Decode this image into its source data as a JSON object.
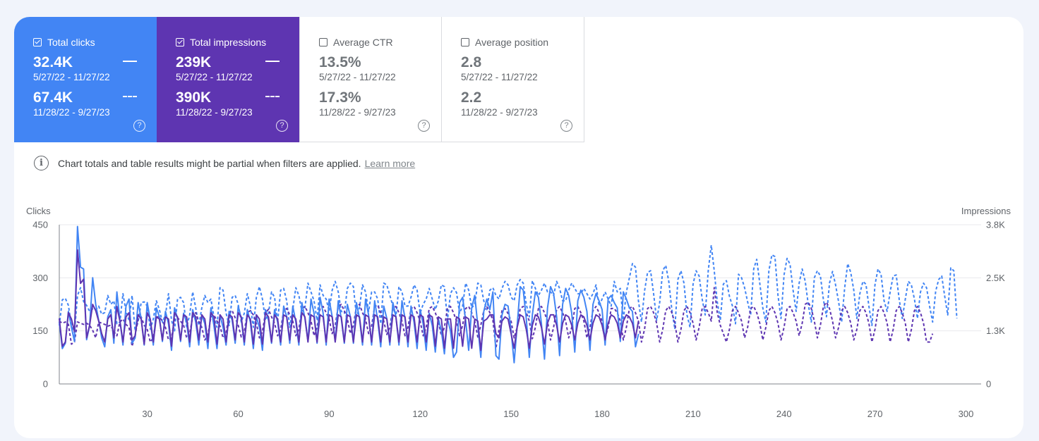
{
  "metrics": [
    {
      "label": "Total clicks",
      "checked": true,
      "value1": "32.4K",
      "range1": "5/27/22 - 11/27/22",
      "value2": "67.4K",
      "range2": "11/28/22 - 9/27/23",
      "color": "#4285f4"
    },
    {
      "label": "Total impressions",
      "checked": true,
      "value1": "239K",
      "range1": "5/27/22 - 11/27/22",
      "value2": "390K",
      "range2": "11/28/22 - 9/27/23",
      "color": "#5e35b1"
    },
    {
      "label": "Average CTR",
      "checked": false,
      "value1": "13.5%",
      "range1": "5/27/22 - 11/27/22",
      "value2": "17.3%",
      "range2": "11/28/22 - 9/27/23"
    },
    {
      "label": "Average position",
      "checked": false,
      "value1": "2.8",
      "range1": "5/27/22 - 11/27/22",
      "value2": "2.2",
      "range2": "11/28/22 - 9/27/23"
    }
  ],
  "help_icon": "?",
  "notice": {
    "text": "Chart totals and table results might be partial when filters are applied.",
    "link": "Learn more"
  },
  "chart_data": {
    "type": "line",
    "ylabel_left": "Clicks",
    "ylabel_right": "Impressions",
    "y_left_ticks": [
      "0",
      "150",
      "300",
      "450"
    ],
    "y_right_ticks": [
      "0",
      "1.3K",
      "2.5K",
      "3.8K"
    ],
    "ylim_left": [
      0,
      450
    ],
    "ylim_right": [
      0,
      3800
    ],
    "x_ticks": [
      "30",
      "60",
      "90",
      "120",
      "150",
      "180",
      "210",
      "240",
      "270",
      "300"
    ],
    "xlim": [
      1,
      305
    ],
    "grid": true,
    "series": [
      {
        "key": "clicks_current",
        "metric": "Total clicks",
        "period": "11/28/22 - 9/27/23",
        "axis": "left",
        "style": "dashed",
        "color": "#4285f4",
        "values": [
          165,
          238,
          242,
          222,
          165,
          145,
          250,
          272,
          233,
          222,
          205,
          212,
          210,
          220,
          197,
          202,
          250,
          225,
          235,
          170,
          175,
          255,
          205,
          180,
          250,
          150,
          175,
          230,
          232,
          220,
          155,
          183,
          235,
          210,
          175,
          195,
          255,
          180,
          150,
          240,
          245,
          230,
          160,
          195,
          260,
          215,
          165,
          215,
          250,
          230,
          240,
          190,
          160,
          272,
          265,
          200,
          165,
          245,
          250,
          225,
          175,
          200,
          255,
          220,
          160,
          245,
          275,
          240,
          180,
          200,
          260,
          245,
          175,
          265,
          270,
          235,
          160,
          210,
          272,
          250,
          205,
          215,
          285,
          260,
          235,
          180,
          280,
          250,
          240,
          205,
          265,
          290,
          260,
          205,
          200,
          270,
          285,
          275,
          190,
          215,
          280,
          260,
          205,
          260,
          260,
          240,
          170,
          285,
          280,
          250,
          220,
          190,
          275,
          260,
          220,
          220,
          245,
          280,
          265,
          200,
          225,
          240,
          270,
          240,
          210,
          235,
          280,
          275,
          180,
          255,
          272,
          258,
          200,
          220,
          285,
          265,
          215,
          225,
          285,
          280,
          235,
          210,
          265,
          272,
          250,
          240,
          270,
          290,
          280,
          245,
          235,
          280,
          295,
          285,
          225,
          190,
          292,
          270,
          250,
          265,
          285,
          260,
          260,
          250,
          290,
          270,
          235,
          235,
          265,
          285,
          270,
          255,
          255,
          270,
          255,
          240,
          255,
          280,
          220,
          240,
          260,
          240,
          220,
          290,
          260,
          270,
          180,
          260,
          300,
          340,
          330,
          235,
          175,
          262,
          315,
          320,
          255,
          180,
          230,
          320,
          335,
          290,
          210,
          155,
          295,
          320,
          285,
          195,
          160,
          282,
          320,
          305,
          240,
          195,
          320,
          392,
          320,
          232,
          180,
          282,
          292,
          248,
          220,
          170,
          310,
          300,
          272,
          232,
          195,
          325,
          352,
          285,
          215,
          175,
          320,
          365,
          360,
          250,
          185,
          308,
          355,
          338,
          265,
          205,
          285,
          325,
          290,
          225,
          175,
          300,
          320,
          305,
          238,
          190,
          285,
          318,
          280,
          232,
          175,
          272,
          340,
          315,
          265,
          185,
          255,
          290,
          282,
          220,
          165,
          280,
          325,
          310,
          235,
          205,
          260,
          305,
          308,
          238,
          185,
          240,
          290,
          280,
          240,
          185,
          260,
          285,
          272,
          220,
          175,
          262,
          295,
          305,
          248,
          195,
          328,
          320,
          185
        ]
      },
      {
        "key": "impressions_current",
        "metric": "Total impressions",
        "period": "11/28/22 - 9/27/23",
        "axis": "right",
        "style": "dashed",
        "color": "#5e35b1",
        "values": [
          1500,
          1450,
          1480,
          1420,
          950,
          1000,
          1480,
          1450,
          1420,
          1450,
          1400,
          1280,
          1100,
          1480,
          1450,
          1420,
          1380,
          1400,
          1250,
          1150,
          1480,
          1550,
          1420,
          1350,
          900,
          1150,
          1550,
          1600,
          1400,
          1300,
          1000,
          1100,
          1600,
          1600,
          1500,
          1350,
          1050,
          1100,
          1550,
          1580,
          1500,
          1400,
          1100,
          1200,
          1600,
          1700,
          1500,
          1350,
          1050,
          1150,
          1600,
          1650,
          1500,
          1380,
          1100,
          1200,
          1700,
          1750,
          1580,
          1400,
          1120,
          1250,
          1700,
          1750,
          1650,
          1450,
          1100,
          1250,
          1700,
          1780,
          1600,
          1450,
          1150,
          1300,
          1750,
          1800,
          1650,
          1500,
          1150,
          1300,
          1800,
          1850,
          1700,
          1500,
          1150,
          1350,
          1800,
          1850,
          1700,
          1550,
          1200,
          1400,
          1850,
          1900,
          1750,
          1550,
          1200,
          1400,
          1850,
          1900,
          1700,
          1550,
          1200,
          1380,
          1850,
          1880,
          1700,
          1500,
          1180,
          1350,
          1800,
          1850,
          1700,
          1500,
          1150,
          1350,
          1800,
          1850,
          1700,
          1500,
          1150,
          1350,
          1800,
          1850,
          1700,
          1500,
          1150,
          1350,
          1800,
          1850,
          1700,
          1500,
          1150,
          1400,
          1800,
          1850,
          1700,
          1500,
          1120,
          1400,
          1750,
          1850,
          1700,
          1520,
          850,
          1300,
          1750,
          1800,
          1680,
          1500,
          1100,
          1350,
          1800,
          1850,
          1700,
          1500,
          1080,
          1350,
          1800,
          1850,
          1700,
          1500,
          1050,
          1350,
          1780,
          1850,
          1700,
          1500,
          1100,
          1350,
          1800,
          1850,
          1700,
          1500,
          1100,
          1350,
          1750,
          1850,
          1700,
          1500,
          1100,
          1350,
          1800,
          1800,
          1700,
          1500,
          1050,
          1350,
          1800,
          1850,
          1700,
          1500,
          1000,
          1300,
          1800,
          1850,
          1700,
          1450,
          1000,
          1300,
          1750,
          1850,
          1700,
          1450,
          1000,
          1300,
          1750,
          1850,
          1700,
          1450,
          1050,
          1350,
          1800,
          1850,
          1700,
          1500,
          2300,
          1700,
          1400,
          1200,
          1000,
          1300,
          1750,
          1850,
          1700,
          1500,
          1100,
          1350,
          1800,
          1850,
          1700,
          1450,
          1050,
          1350,
          1750,
          1850,
          1700,
          1450,
          1050,
          1350,
          1800,
          1850,
          1700,
          1500,
          1150,
          1450,
          1900,
          1950,
          1800,
          1500,
          1100,
          1400,
          1850,
          1950,
          1800,
          1500,
          1100,
          1350,
          1750,
          1850,
          1700,
          1450,
          1050,
          1300,
          1750,
          1850,
          1700,
          1450,
          1000,
          1300,
          1750,
          1850,
          1700,
          1450,
          1000,
          1300,
          1750,
          1850,
          1700,
          1450,
          1000,
          1300,
          1750,
          1850,
          1700,
          1450,
          1000,
          1000,
          1200
        ]
      },
      {
        "key": "clicks_previous",
        "metric": "Total clicks",
        "period": "5/27/22 - 11/27/22",
        "axis": "left",
        "style": "solid",
        "color": "#4285f4",
        "values": [
          175,
          100,
          115,
          205,
          160,
          120,
          445,
          330,
          325,
          125,
          165,
          300,
          225,
          180,
          130,
          105,
          190,
          210,
          115,
          260,
          180,
          110,
          220,
          240,
          115,
          130,
          230,
          185,
          110,
          230,
          180,
          110,
          215,
          190,
          120,
          205,
          170,
          95,
          215,
          185,
          120,
          200,
          175,
          105,
          210,
          175,
          110,
          195,
          170,
          100,
          215,
          165,
          100,
          195,
          160,
          110,
          205,
          180,
          115,
          220,
          185,
          110,
          210,
          175,
          100,
          190,
          160,
          95,
          210,
          180,
          115,
          210,
          175,
          110,
          220,
          190,
          115,
          220,
          175,
          110,
          230,
          185,
          120,
          240,
          200,
          115,
          245,
          200,
          110,
          240,
          190,
          120,
          235,
          185,
          115,
          225,
          190,
          115,
          230,
          185,
          110,
          240,
          195,
          110,
          235,
          180,
          105,
          220,
          185,
          110,
          230,
          190,
          110,
          235,
          185,
          105,
          220,
          175,
          100,
          210,
          170,
          95,
          200,
          165,
          90,
          185,
          150,
          85,
          185,
          150,
          75,
          90,
          230,
          245,
          180,
          95,
          215,
          250,
          165,
          75,
          205,
          240,
          210,
          260,
          80,
          70,
          195,
          225,
          220,
          150,
          60,
          165,
          275,
          265,
          185,
          75,
          195,
          260,
          245,
          170,
          70,
          215,
          275,
          255,
          190,
          80,
          225,
          270,
          250,
          200,
          90,
          235,
          265,
          245,
          205,
          95,
          225,
          255,
          235,
          210,
          110,
          240,
          250,
          230,
          215,
          120,
          260,
          240,
          215,
          205,
          105,
          140
        ]
      },
      {
        "key": "impressions_previous",
        "metric": "Total impressions",
        "period": "5/27/22 - 11/27/22",
        "axis": "right",
        "style": "solid",
        "color": "#5e35b1",
        "values": [
          1550,
          900,
          1000,
          1700,
          1550,
          1250,
          3200,
          2400,
          2500,
          1100,
          1400,
          1900,
          1750,
          1500,
          1200,
          1000,
          1550,
          1650,
          1100,
          1850,
          1500,
          1000,
          1600,
          1700,
          1050,
          1150,
          1650,
          1550,
          950,
          1700,
          1550,
          1000,
          1600,
          1550,
          1050,
          1600,
          1550,
          900,
          1700,
          1600,
          1050,
          1650,
          1600,
          1000,
          1700,
          1600,
          1050,
          1650,
          1550,
          1000,
          1700,
          1600,
          950,
          1650,
          1550,
          1000,
          1650,
          1600,
          1050,
          1700,
          1600,
          1000,
          1650,
          1550,
          950,
          1650,
          1550,
          950,
          1700,
          1600,
          1000,
          1650,
          1550,
          1000,
          1650,
          1600,
          1050,
          1650,
          1550,
          1000,
          1700,
          1600,
          1000,
          1650,
          1600,
          1000,
          1650,
          1600,
          1000,
          1650,
          1600,
          1000,
          1650,
          1600,
          1000,
          1650,
          1600,
          1000,
          1650,
          1600,
          1000,
          1650,
          1600,
          1000,
          1650,
          1600,
          1000,
          1600,
          1550,
          1000,
          1650,
          1600,
          1000,
          1650,
          1600,
          1000,
          1650,
          1600,
          1000,
          1650,
          1600,
          1000,
          1650,
          1600,
          900,
          1600,
          1550,
          850,
          1550,
          1550,
          850,
          1600,
          1550,
          900,
          1600,
          1550,
          850,
          1550,
          1500,
          800,
          1500,
          1550,
          1650,
          1650,
          1200,
          1100,
          1500,
          1600,
          1550,
          1200,
          850,
          1350,
          1650,
          1600,
          1300,
          850,
          1400,
          1650,
          1600,
          1350,
          950,
          1450,
          1650,
          1650,
          1400,
          1000,
          1450,
          1650,
          1600,
          1400,
          1050,
          1450,
          1650,
          1600,
          1400,
          1050,
          1450,
          1650,
          1600,
          1400,
          1050,
          1450,
          1650,
          1600,
          1450,
          1100,
          1500,
          1650,
          1600,
          1450,
          1100,
          1500
        ]
      }
    ]
  }
}
